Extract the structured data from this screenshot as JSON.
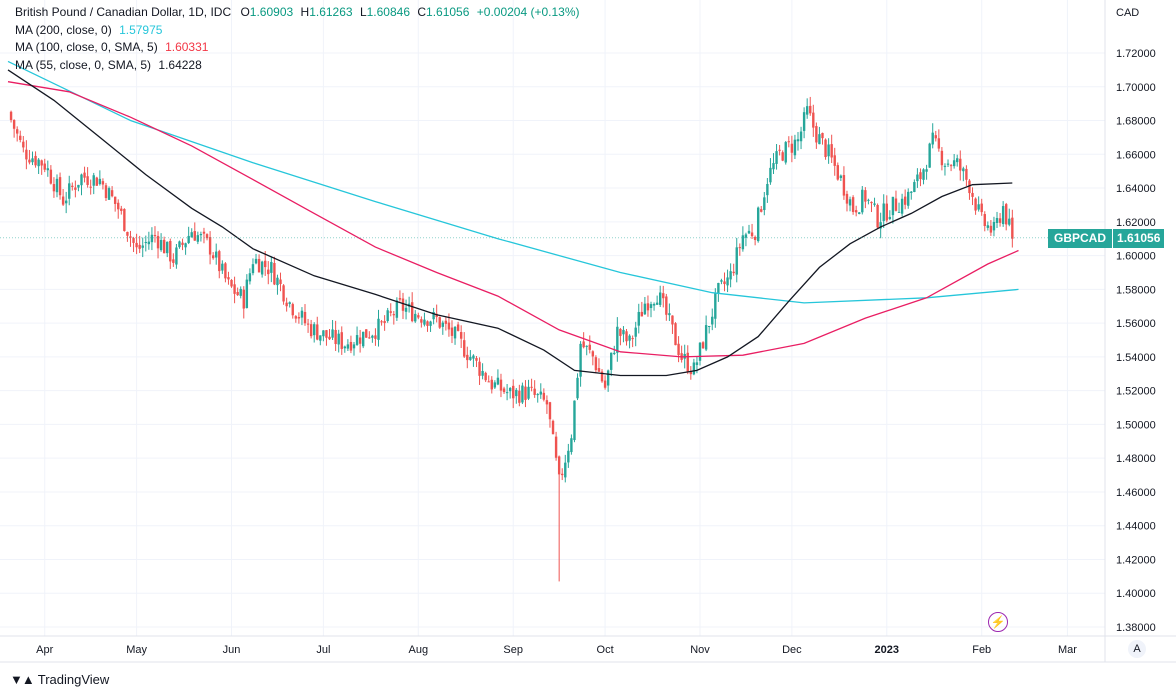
{
  "legend": {
    "title": "British Pound / Canadian Dollar, 1D, IDC",
    "open_label": "O",
    "open": "1.60903",
    "high_label": "H",
    "high": "1.61263",
    "low_label": "L",
    "low": "1.60846",
    "close_label": "C",
    "close": "1.61056",
    "change": "+0.00204 (+0.13%)",
    "ma200_label": "MA (200, close, 0)",
    "ma200_value": "1.57975",
    "ma100_label": "MA (100, close, 0, SMA, 5)",
    "ma100_value": "1.60331",
    "ma55_label": "MA (55, close, 0, SMA, 5)",
    "ma55_value": "1.64228"
  },
  "price_tag": {
    "symbol": "GBPCAD",
    "value": "1.61056"
  },
  "brand": {
    "name": "TradingView"
  },
  "auto_button": "A",
  "colors": {
    "up": "#26a69a",
    "down": "#ef5350",
    "ma200": "#26c6da",
    "ma100": "#e91e63",
    "ma55": "#131722",
    "grid": "#f0f3fa"
  },
  "chart_data": {
    "type": "candlestick",
    "currency": "CAD",
    "ylim": [
      1.37,
      1.75
    ],
    "y_ticks": [
      "1.38000",
      "1.40000",
      "1.42000",
      "1.44000",
      "1.46000",
      "1.48000",
      "1.50000",
      "1.52000",
      "1.54000",
      "1.56000",
      "1.58000",
      "1.60000",
      "1.62000",
      "1.64000",
      "1.66000",
      "1.68000",
      "1.70000",
      "1.72000"
    ],
    "x_ticks": [
      "Apr",
      "May",
      "Jun",
      "Jul",
      "Aug",
      "Sep",
      "Oct",
      "Nov",
      "Dec",
      "2023",
      "Feb",
      "Mar"
    ],
    "x_tick_days": [
      12,
      42,
      73,
      103,
      134,
      165,
      195,
      226,
      256,
      287,
      318,
      346
    ],
    "day_range": [
      0,
      355
    ],
    "close_path": [
      [
        0,
        1.685
      ],
      [
        5,
        1.662
      ],
      [
        12,
        1.654
      ],
      [
        18,
        1.633
      ],
      [
        24,
        1.647
      ],
      [
        30,
        1.645
      ],
      [
        36,
        1.628
      ],
      [
        42,
        1.603
      ],
      [
        48,
        1.612
      ],
      [
        54,
        1.598
      ],
      [
        60,
        1.615
      ],
      [
        66,
        1.605
      ],
      [
        72,
        1.582
      ],
      [
        77,
        1.574
      ],
      [
        80,
        1.598
      ],
      [
        86,
        1.592
      ],
      [
        92,
        1.572
      ],
      [
        98,
        1.558
      ],
      [
        104,
        1.552
      ],
      [
        110,
        1.548
      ],
      [
        116,
        1.553
      ],
      [
        122,
        1.558
      ],
      [
        128,
        1.57
      ],
      [
        134,
        1.565
      ],
      [
        140,
        1.562
      ],
      [
        146,
        1.552
      ],
      [
        152,
        1.538
      ],
      [
        158,
        1.524
      ],
      [
        164,
        1.518
      ],
      [
        170,
        1.519
      ],
      [
        176,
        1.512
      ],
      [
        180,
        1.465
      ],
      [
        184,
        1.495
      ],
      [
        187,
        1.548
      ],
      [
        191,
        1.54
      ],
      [
        195,
        1.522
      ],
      [
        199,
        1.555
      ],
      [
        203,
        1.548
      ],
      [
        208,
        1.572
      ],
      [
        212,
        1.578
      ],
      [
        216,
        1.56
      ],
      [
        220,
        1.54
      ],
      [
        224,
        1.532
      ],
      [
        228,
        1.555
      ],
      [
        232,
        1.578
      ],
      [
        236,
        1.588
      ],
      [
        240,
        1.612
      ],
      [
        244,
        1.615
      ],
      [
        248,
        1.646
      ],
      [
        252,
        1.66
      ],
      [
        258,
        1.668
      ],
      [
        261,
        1.685
      ],
      [
        264,
        1.672
      ],
      [
        268,
        1.66
      ],
      [
        272,
        1.645
      ],
      [
        276,
        1.628
      ],
      [
        280,
        1.635
      ],
      [
        284,
        1.622
      ],
      [
        288,
        1.628
      ],
      [
        294,
        1.635
      ],
      [
        298,
        1.647
      ],
      [
        302,
        1.667
      ],
      [
        306,
        1.656
      ],
      [
        310,
        1.654
      ],
      [
        314,
        1.642
      ],
      [
        318,
        1.62
      ],
      [
        322,
        1.614
      ],
      [
        325,
        1.629
      ],
      [
        328,
        1.61
      ]
    ],
    "ma200": [
      [
        0,
        1.715
      ],
      [
        40,
        1.68
      ],
      [
        80,
        1.655
      ],
      [
        120,
        1.632
      ],
      [
        160,
        1.61
      ],
      [
        200,
        1.59
      ],
      [
        230,
        1.578
      ],
      [
        260,
        1.572
      ],
      [
        300,
        1.575
      ],
      [
        330,
        1.58
      ]
    ],
    "ma100": [
      [
        0,
        1.703
      ],
      [
        20,
        1.697
      ],
      [
        40,
        1.682
      ],
      [
        60,
        1.665
      ],
      [
        80,
        1.645
      ],
      [
        100,
        1.625
      ],
      [
        120,
        1.605
      ],
      [
        140,
        1.59
      ],
      [
        160,
        1.576
      ],
      [
        180,
        1.556
      ],
      [
        200,
        1.543
      ],
      [
        220,
        1.54
      ],
      [
        240,
        1.541
      ],
      [
        260,
        1.548
      ],
      [
        280,
        1.563
      ],
      [
        300,
        1.575
      ],
      [
        320,
        1.595
      ],
      [
        330,
        1.603
      ]
    ],
    "ma55": [
      [
        0,
        1.71
      ],
      [
        15,
        1.692
      ],
      [
        30,
        1.67
      ],
      [
        45,
        1.648
      ],
      [
        60,
        1.628
      ],
      [
        70,
        1.617
      ],
      [
        80,
        1.604
      ],
      [
        100,
        1.588
      ],
      [
        120,
        1.577
      ],
      [
        140,
        1.565
      ],
      [
        160,
        1.557
      ],
      [
        175,
        1.544
      ],
      [
        185,
        1.532
      ],
      [
        200,
        1.529
      ],
      [
        215,
        1.529
      ],
      [
        225,
        1.532
      ],
      [
        235,
        1.54
      ],
      [
        245,
        1.552
      ],
      [
        255,
        1.573
      ],
      [
        265,
        1.593
      ],
      [
        275,
        1.607
      ],
      [
        285,
        1.617
      ],
      [
        295,
        1.625
      ],
      [
        305,
        1.635
      ],
      [
        315,
        1.642
      ],
      [
        328,
        1.643
      ]
    ]
  }
}
